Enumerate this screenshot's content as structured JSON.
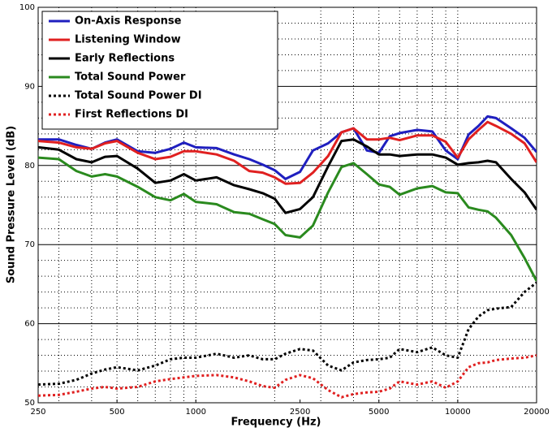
{
  "chart_data": {
    "type": "line",
    "xlabel": "Frequency (Hz)",
    "ylabel": "Sound Pressure Level (dB)",
    "xscale": "log",
    "grid": true,
    "legend": "upper left",
    "x": [
      250,
      300,
      350,
      400,
      450,
      500,
      600,
      700,
      800,
      900,
      1000,
      1200,
      1400,
      1600,
      1800,
      2000,
      2200,
      2500,
      2800,
      3200,
      3600,
      4000,
      4500,
      5000,
      5500,
      6000,
      7000,
      8000,
      9000,
      10000,
      11000,
      12000,
      13000,
      14000,
      16000,
      18000,
      20000
    ],
    "xlim": [
      250,
      20000
    ],
    "xticks": [
      250,
      500,
      1000,
      2500,
      5000,
      10000,
      20000
    ],
    "ylim": [
      50,
      100
    ],
    "yticks": [
      50,
      60,
      70,
      80,
      90,
      100
    ],
    "series": [
      {
        "name": "On-Axis Response",
        "color": "#1f1fbf",
        "dash": "solid",
        "values": [
          83.3,
          83.3,
          82.6,
          82.1,
          82.9,
          83.3,
          81.8,
          81.6,
          82.1,
          82.9,
          82.3,
          82.2,
          81.4,
          80.8,
          80.1,
          79.4,
          78.3,
          79.2,
          81.9,
          82.8,
          84.2,
          84.7,
          81.9,
          81.6,
          83.7,
          84.1,
          84.5,
          84.3,
          81.9,
          80.8,
          83.9,
          85,
          86.2,
          86,
          84.7,
          83.5,
          81.7
        ]
      },
      {
        "name": "Listening Window",
        "color": "#e02020",
        "dash": "solid",
        "values": [
          83.1,
          82.9,
          82.3,
          82.1,
          82.8,
          83.1,
          81.6,
          80.8,
          81.1,
          81.8,
          81.8,
          81.4,
          80.6,
          79.3,
          79.1,
          78.5,
          77.7,
          77.8,
          79.1,
          81.2,
          84.2,
          84.7,
          83.3,
          83.3,
          83.5,
          83.2,
          83.8,
          83.8,
          83,
          81,
          83.3,
          84.5,
          85.5,
          85,
          84,
          82.8,
          80.4
        ]
      },
      {
        "name": "Early Reflections",
        "color": "#000000",
        "dash": "solid",
        "values": [
          82.3,
          82,
          80.8,
          80.4,
          81.1,
          81.2,
          79.6,
          77.8,
          78.1,
          78.9,
          78.1,
          78.5,
          77.5,
          77,
          76.5,
          75.8,
          74,
          74.5,
          76,
          79.9,
          83.1,
          83.3,
          82.4,
          81.4,
          81.4,
          81.2,
          81.4,
          81.4,
          81,
          80.1,
          80.3,
          80.4,
          80.6,
          80.4,
          78.3,
          76.6,
          74.4
        ]
      },
      {
        "name": "Total Sound Power",
        "color": "#2a8a1e",
        "dash": "solid",
        "values": [
          81,
          80.8,
          79.3,
          78.6,
          78.9,
          78.6,
          77.3,
          76,
          75.6,
          76.4,
          75.4,
          75.1,
          74.1,
          73.9,
          73.2,
          72.6,
          71.2,
          70.9,
          72.4,
          76.6,
          79.8,
          80.3,
          78.9,
          77.6,
          77.3,
          76.3,
          77.1,
          77.4,
          76.6,
          76.5,
          74.7,
          74.4,
          74.2,
          73.4,
          71.2,
          68.3,
          65.4
        ]
      },
      {
        "name": "Total Sound Power DI",
        "color": "#000000",
        "dash": "dotted",
        "values": [
          52.3,
          52.4,
          52.9,
          53.7,
          54.2,
          54.5,
          54.1,
          54.7,
          55.5,
          55.7,
          55.7,
          56.2,
          55.7,
          56,
          55.5,
          55.5,
          56.2,
          56.8,
          56.6,
          54.7,
          54.1,
          55.1,
          55.4,
          55.5,
          55.7,
          56.8,
          56.4,
          57,
          56,
          55.7,
          59.3,
          60.9,
          61.7,
          61.9,
          62.1,
          64,
          65.2
        ]
      },
      {
        "name": "First Reflections DI",
        "color": "#e02020",
        "dash": "dotted",
        "values": [
          50.9,
          51,
          51.4,
          51.8,
          52,
          51.8,
          52,
          52.7,
          53,
          53.2,
          53.4,
          53.5,
          53.2,
          52.7,
          52.1,
          51.9,
          52.9,
          53.5,
          53.1,
          51.6,
          50.7,
          51.1,
          51.3,
          51.4,
          51.8,
          52.7,
          52.3,
          52.7,
          51.9,
          52.7,
          54.5,
          55,
          55.1,
          55.4,
          55.6,
          55.7,
          56
        ]
      }
    ]
  }
}
